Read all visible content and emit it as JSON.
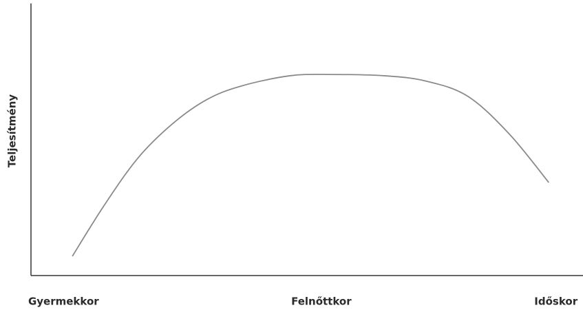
{
  "chart_data": {
    "type": "line",
    "ylabel": "Teljesítmény",
    "x": [
      7.5,
      13.1,
      19.3,
      25.6,
      31.8,
      38.0,
      46.8,
      54.2,
      64.2,
      71.7,
      79.2,
      86.7,
      93.8
    ],
    "series": [
      {
        "color": "#8a8a8a",
        "values": [
          7.1,
          25.3,
          43.0,
          55.7,
          64.6,
          69.6,
          73.4,
          73.9,
          73.4,
          71.4,
          65.8,
          51.9,
          34.2
        ]
      }
    ],
    "xlim": [
      0,
      100
    ],
    "ylim": [
      0,
      100
    ],
    "xticks": [
      {
        "value": 5.9,
        "label": "Gyermekkor"
      },
      {
        "value": 52.6,
        "label": "Felnőttkor"
      },
      {
        "value": 95.1,
        "label": "Időskor"
      }
    ]
  }
}
